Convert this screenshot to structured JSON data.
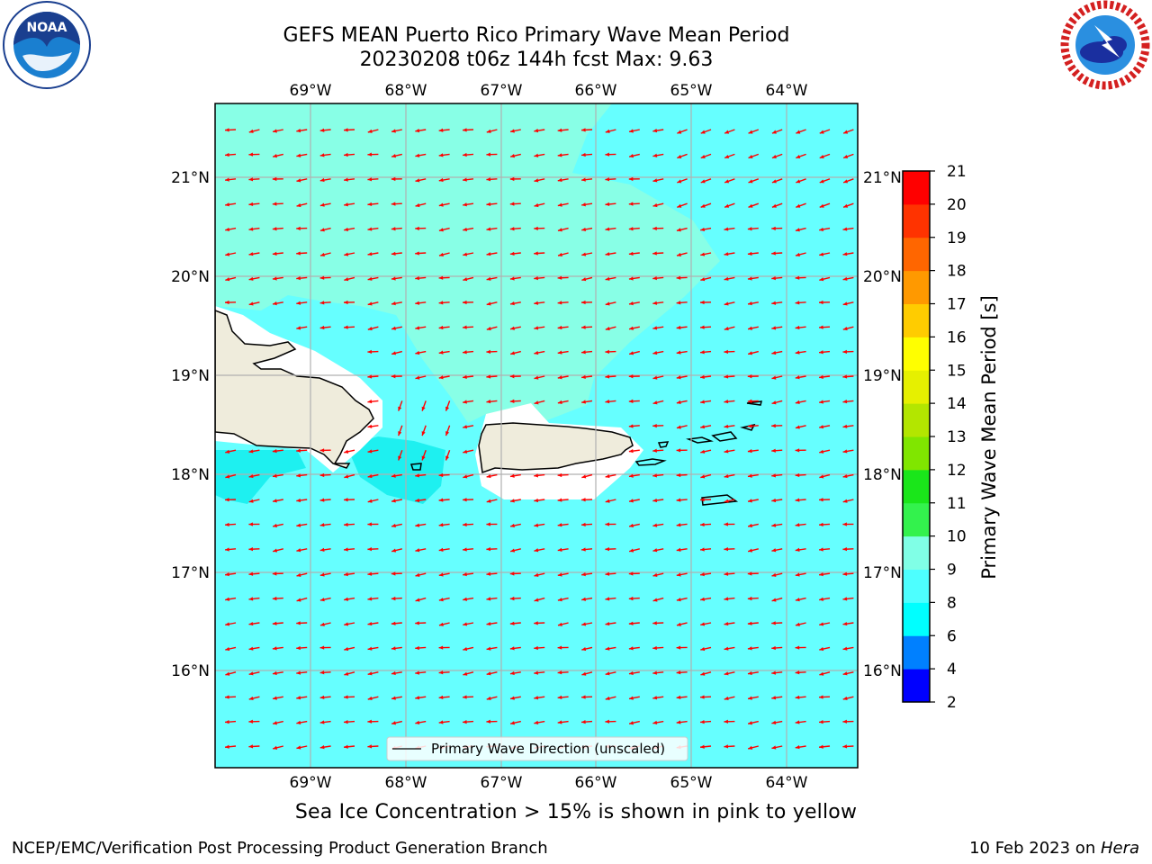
{
  "title": {
    "line1": "GEFS MEAN Puerto Rico Primary Wave Mean Period",
    "line2": "20230208 t06z 144h fcst   Max: 9.63"
  },
  "map": {
    "lon_range": [
      -70,
      -63.25
    ],
    "lat_range": [
      15.25,
      21.75
    ],
    "lon_ticks": [
      "69°W",
      "68°W",
      "67°W",
      "66°W",
      "65°W",
      "64°W"
    ],
    "lat_ticks": [
      "21°N",
      "20°N",
      "19°N",
      "18°N",
      "17°N",
      "16°N"
    ],
    "gridlines": true,
    "land_color": "#efecdc",
    "arrow_color": "#ff0000",
    "legend": {
      "label": "Primary Wave Direction (unscaled)",
      "placement": "bottom-center"
    }
  },
  "colorbar": {
    "label": "Primary Wave Mean Period [s]",
    "ticks": [
      "21",
      "20",
      "19",
      "18",
      "17",
      "16",
      "15",
      "14",
      "13",
      "12",
      "11",
      "10",
      "9",
      "8",
      "6",
      "4",
      "2"
    ],
    "colors_bottom_to_top": [
      "#0000ff",
      "#0080ff",
      "#00ffff",
      "#4dffff",
      "#80ffe6",
      "#33f24d",
      "#1ae61a",
      "#80e600",
      "#b3e600",
      "#e6f000",
      "#ffff00",
      "#ffcc00",
      "#ff9900",
      "#ff6600",
      "#ff3300",
      "#ff0000"
    ]
  },
  "footnote": "Sea Ice Concentration > 15% is shown in pink to yellow",
  "credit": "NCEP/EMC/Verification Post Processing Product Generation Branch",
  "date": {
    "text": "10 Feb 2023 on ",
    "host": "Hera"
  },
  "logos": {
    "left": "noaa-logo-icon",
    "left_text": "NOAA",
    "right": "nws-logo-icon"
  }
}
